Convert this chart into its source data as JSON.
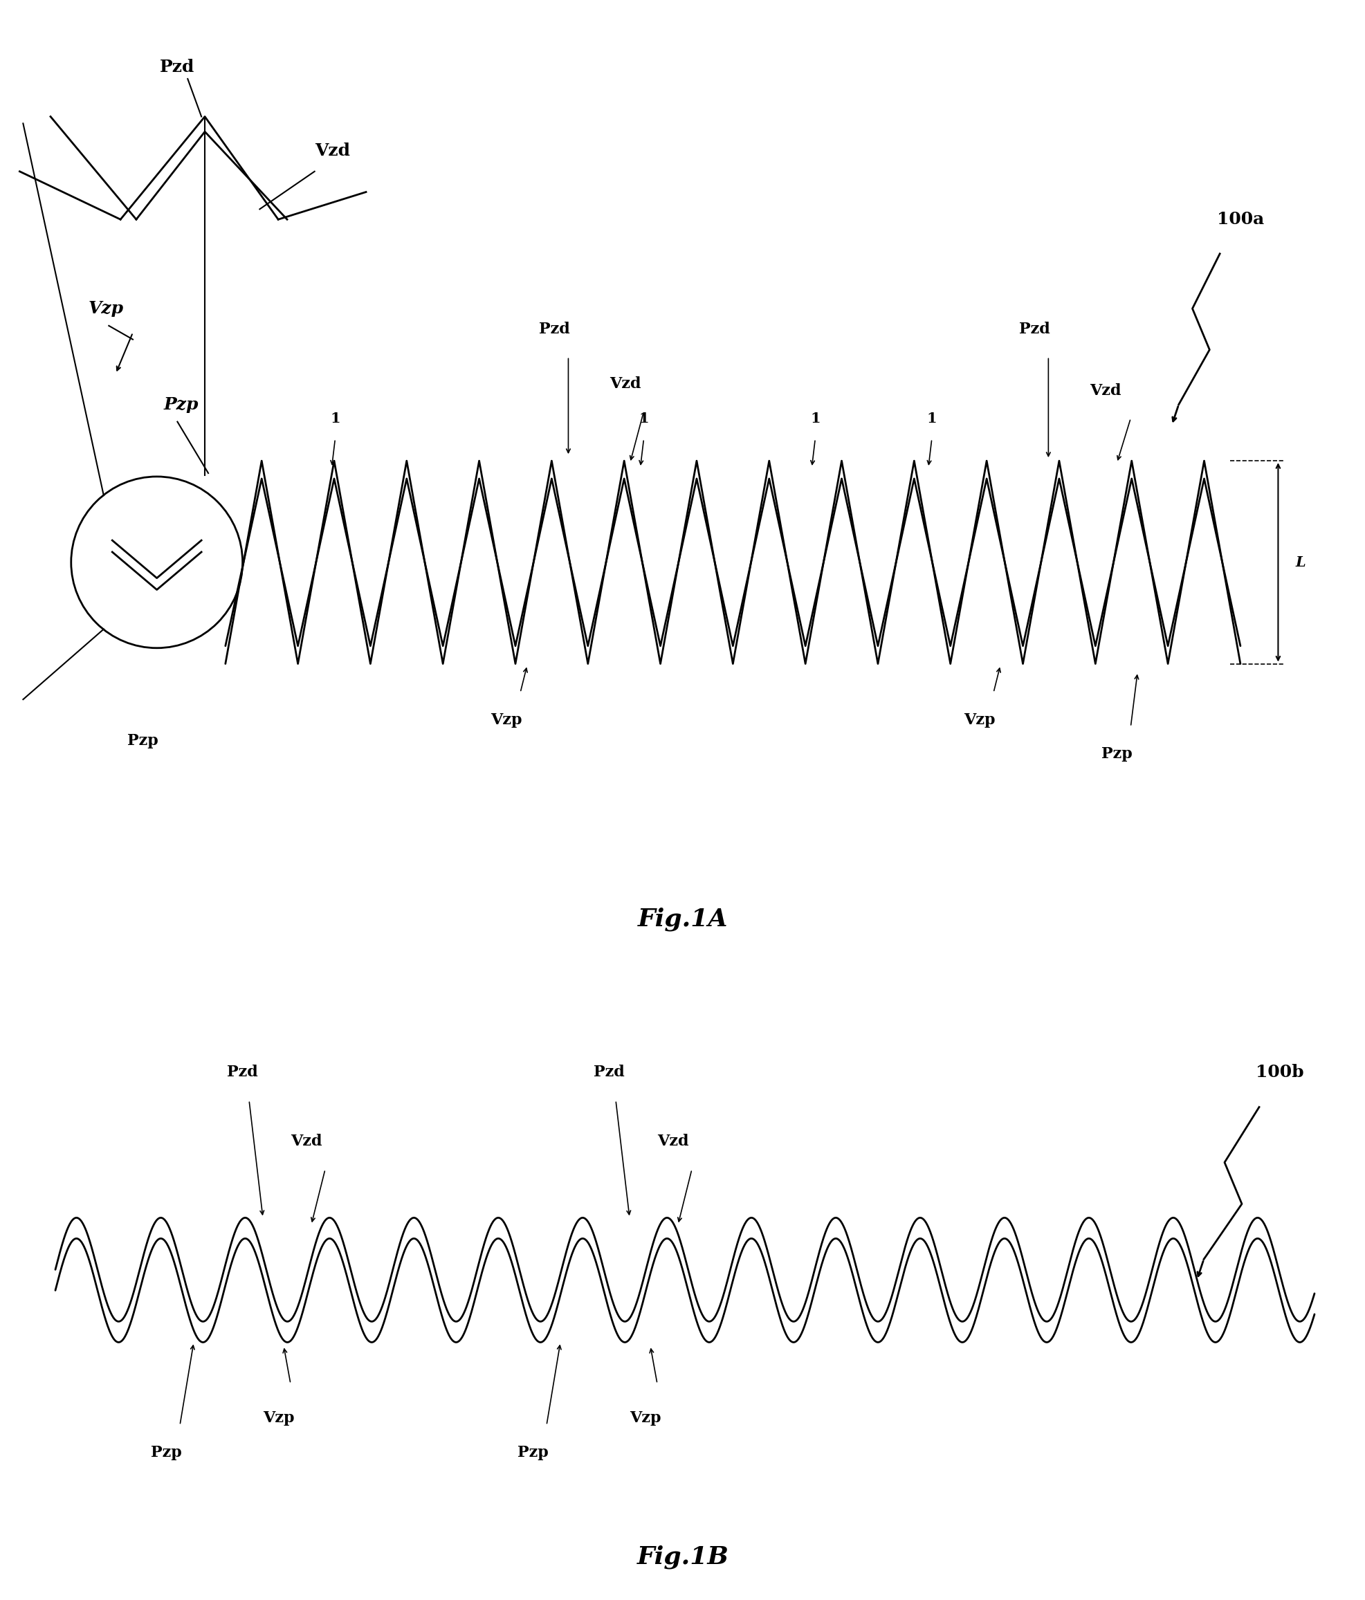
{
  "fig_title_a": "Fig.1A",
  "fig_title_b": "Fig.1B",
  "label_100a": "100a",
  "label_100b": "100b",
  "label_pzd": "Pzd",
  "label_vzd": "Vzd",
  "label_vzp": "Vzp",
  "label_pzp": "Pzp",
  "bg_color": "#ffffff",
  "line_color": "#000000"
}
